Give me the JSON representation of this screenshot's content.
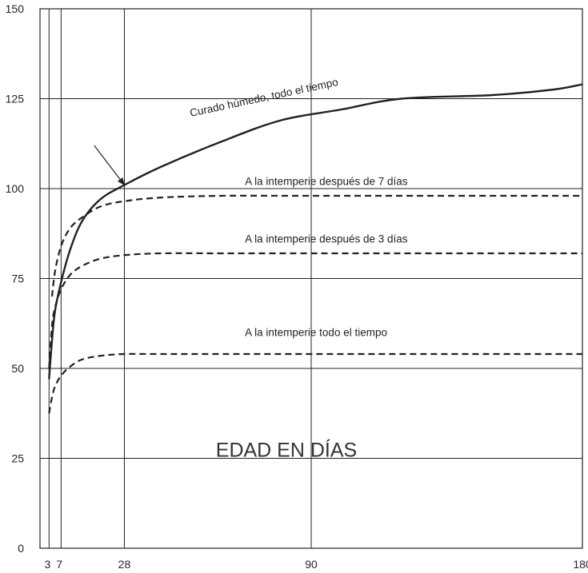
{
  "chart_data": {
    "type": "line",
    "title": "",
    "xlabel": "",
    "ylabel": "",
    "xlim": [
      0,
      180
    ],
    "ylim": [
      0,
      150
    ],
    "x_ticks": [
      3,
      7,
      28,
      90,
      180
    ],
    "x_tick_labels": [
      "3",
      "7",
      "28",
      "90",
      "180"
    ],
    "y_ticks": [
      0,
      25,
      50,
      75,
      100,
      125,
      150
    ],
    "center_text": "EDAD EN DÍAS",
    "series": [
      {
        "name": "Curado húmedo, todo el tiempo",
        "style": "solid",
        "x": [
          3,
          4,
          5,
          7,
          10,
          14,
          20,
          28,
          40,
          60,
          80,
          100,
          120,
          150,
          170,
          180
        ],
        "y": [
          47,
          58,
          66,
          74,
          83,
          91,
          97,
          101,
          106,
          113,
          119,
          122,
          125,
          126,
          127.5,
          129
        ]
      },
      {
        "name": "A la intemperie después de 7 días",
        "style": "dashed",
        "x": [
          4,
          5,
          7,
          10,
          14,
          20,
          28,
          40,
          60,
          90,
          180
        ],
        "y": [
          70,
          77,
          84,
          89,
          92,
          95,
          96.5,
          97.5,
          98,
          98,
          98
        ]
      },
      {
        "name": "A la intemperie después de 3 días",
        "style": "dashed",
        "x": [
          3,
          4,
          5,
          7,
          10,
          14,
          20,
          28,
          40,
          60,
          90,
          180
        ],
        "y": [
          50,
          62,
          67,
          72,
          76,
          78.5,
          80.5,
          81.5,
          82,
          82,
          82,
          82
        ]
      },
      {
        "name": "A la intemperie todo el tiempo",
        "style": "dashed",
        "x": [
          3,
          4,
          5,
          7,
          10,
          14,
          20,
          28,
          40,
          60,
          90,
          180
        ],
        "y": [
          37.5,
          42,
          45,
          48,
          50.5,
          52.5,
          53.5,
          54,
          54,
          54,
          54,
          54
        ]
      }
    ],
    "annotations": [
      {
        "text": "Curado húmedo, todo el tiempo",
        "x": 50,
        "y": 120,
        "angle": -12
      },
      {
        "text": "A la intemperie después de 7 días",
        "x": 68,
        "y": 101,
        "angle": 0
      },
      {
        "text": "A la intemperie después de 3 días",
        "x": 68,
        "y": 85,
        "angle": 0
      },
      {
        "text": "A la intemperie todo el tiempo",
        "x": 68,
        "y": 59,
        "angle": 0
      }
    ],
    "arrow": {
      "from": [
        18,
        112
      ],
      "to": [
        28,
        101
      ]
    },
    "grid": true,
    "colors": {
      "line": "#222222",
      "grid": "#222222",
      "background": "#ffffff"
    }
  }
}
